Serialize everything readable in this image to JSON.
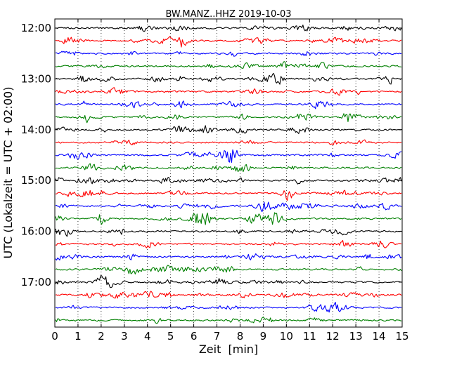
{
  "chart_data": {
    "type": "line",
    "title": "BW.MANZ..HHZ 2019-10-03",
    "xlabel": "Zeit  [min]",
    "ylabel": "UTC (Lokalzeit = UTC + 02:00)",
    "xlim": [
      0,
      15
    ],
    "x_ticks": [
      "0",
      "1",
      "2",
      "3",
      "4",
      "5",
      "6",
      "7",
      "8",
      "9",
      "10",
      "11",
      "12",
      "13",
      "14",
      "15"
    ],
    "y_ticks": [
      {
        "label": "12:00",
        "row": 0
      },
      {
        "label": "13:00",
        "row": 4
      },
      {
        "label": "14:00",
        "row": 8
      },
      {
        "label": "15:00",
        "row": 12
      },
      {
        "label": "16:00",
        "row": 16
      },
      {
        "label": "17:00",
        "row": 20
      }
    ],
    "trace_count": 24,
    "trace_interval_minutes": 15,
    "first_trace_start": "12:00",
    "trace_colors": [
      "#000000",
      "#ff0000",
      "#0000ff",
      "#008000"
    ],
    "vertical_grid": "dotted, every 1 min",
    "traces_note": "seismic noise traces; amplitudes are not labeled"
  }
}
